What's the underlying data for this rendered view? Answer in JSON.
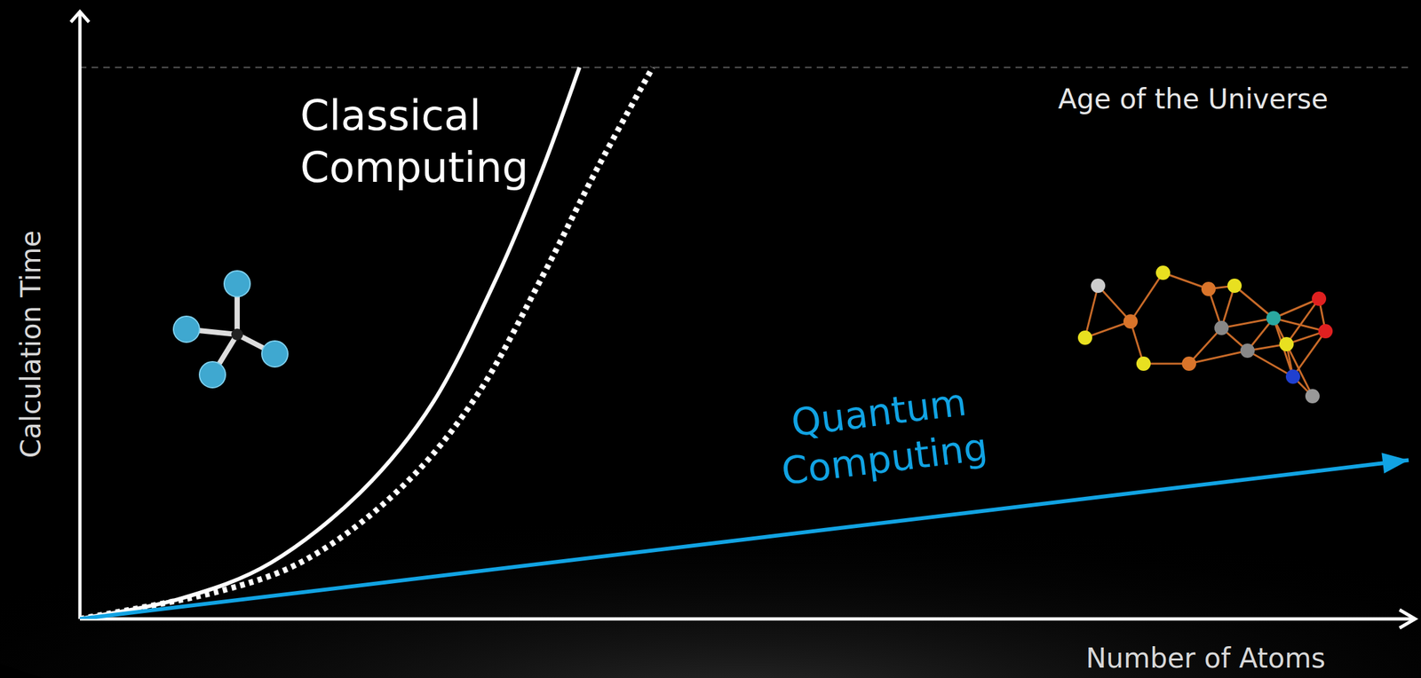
{
  "chart_data": {
    "type": "line",
    "xlabel": "Number of Atoms",
    "ylabel": "Calculation Time",
    "xlim": [
      0,
      100
    ],
    "ylim": [
      0,
      100
    ],
    "tick_labels": false,
    "grid": false,
    "annotations": [
      {
        "text": "Age of the Universe",
        "y": 92
      }
    ],
    "series": [
      {
        "name": "Classical Computing",
        "color": "#ffffff",
        "line_style": "solid",
        "x": [
          0,
          7.6,
          14.4,
          21.2,
          26.6,
          31.4,
          34.8,
          37.6
        ],
        "values": [
          0,
          3.4,
          9.4,
          21.3,
          36.2,
          57.1,
          75.0,
          92
        ]
      },
      {
        "color": "#ffffff",
        "line_style": "dotted",
        "x": [
          0,
          11,
          17.8,
          24.6,
          30,
          34.8,
          38.9,
          43.1
        ],
        "values": [
          0,
          4.9,
          10.9,
          22.8,
          37.7,
          57.1,
          75.0,
          92
        ]
      },
      {
        "name": "Quantum Computing",
        "color": "#11a3e3",
        "line_style": "solid",
        "marker": "arrow",
        "x": [
          0,
          100
        ],
        "values": [
          0,
          26.5
        ]
      }
    ]
  }
}
